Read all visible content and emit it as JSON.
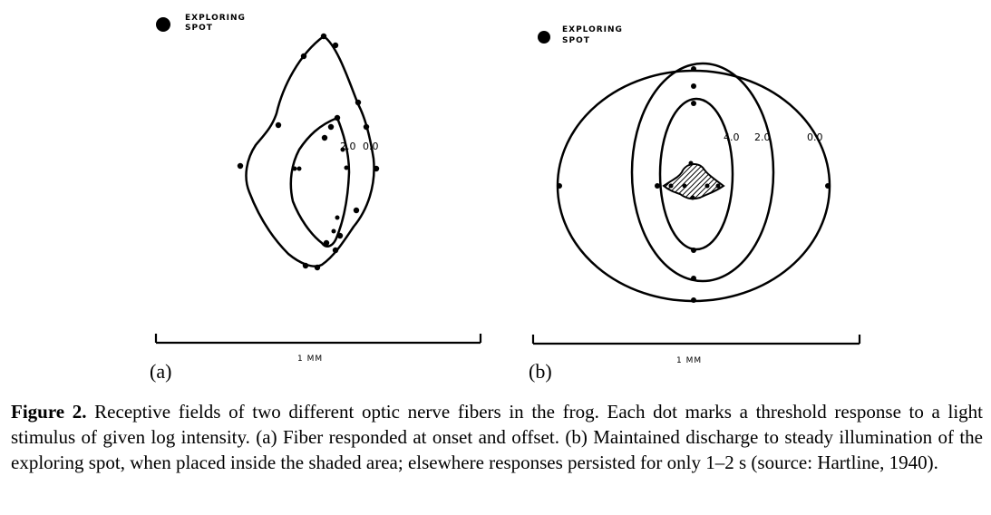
{
  "figure": {
    "panel_a": {
      "legend_label_line1": "EXPLORING",
      "legend_label_line2": "SPOT",
      "contour_labels": [
        "2.0",
        "0.0"
      ],
      "scale_label": "1 MM",
      "panel_label": "(a)"
    },
    "panel_b": {
      "legend_label_line1": "EXPLORING",
      "legend_label_line2": "SPOT",
      "contour_labels": [
        "4.0",
        "2.0",
        "0.0"
      ],
      "scale_label": "1 MM",
      "panel_label": "(b)"
    }
  },
  "caption": {
    "prefix": "Figure 2.",
    "text": " Receptive fields of two different optic nerve fibers in the frog. Each dot marks a threshold response to a light stimulus of given log intensity. (a) Fiber responded at onset and offset. (b) Maintained discharge to steady illumination of the exploring spot, when placed inside the shaded area; elsewhere responses persisted for only 1–2 s (source: Hartline, 1940)."
  }
}
